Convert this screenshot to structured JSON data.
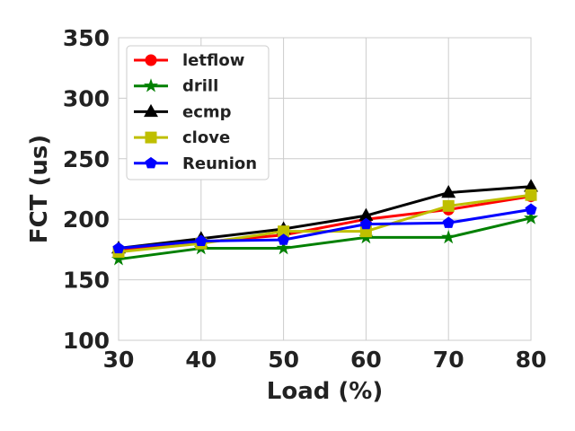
{
  "chart_data": {
    "type": "line",
    "title": "",
    "xlabel": "Load (%)",
    "ylabel": "FCT (us)",
    "x": [
      30,
      40,
      50,
      60,
      70,
      80
    ],
    "xlim": [
      30,
      80
    ],
    "ylim": [
      100,
      350
    ],
    "xticks": [
      "30",
      "40",
      "50",
      "60",
      "70",
      "80"
    ],
    "yticks": [
      "100",
      "150",
      "200",
      "250",
      "300",
      "350"
    ],
    "grid": true,
    "legend_position": "top-left",
    "series": [
      {
        "name": "letflow",
        "color": "#ff0000",
        "marker": "circle",
        "values": [
          175,
          181,
          187,
          200,
          208,
          219
        ]
      },
      {
        "name": "drill",
        "color": "#008000",
        "marker": "star",
        "values": [
          167,
          176,
          176,
          185,
          185,
          201
        ]
      },
      {
        "name": "ecmp",
        "color": "#000000",
        "marker": "triangle",
        "values": [
          176,
          184,
          192,
          203,
          222,
          227
        ]
      },
      {
        "name": "clove",
        "color": "#bfbf00",
        "marker": "square",
        "values": [
          173,
          180,
          190,
          190,
          211,
          220
        ]
      },
      {
        "name": "Reunion",
        "color": "#0000ff",
        "marker": "pentagon",
        "values": [
          176,
          182,
          183,
          196,
          197,
          208
        ]
      }
    ]
  }
}
